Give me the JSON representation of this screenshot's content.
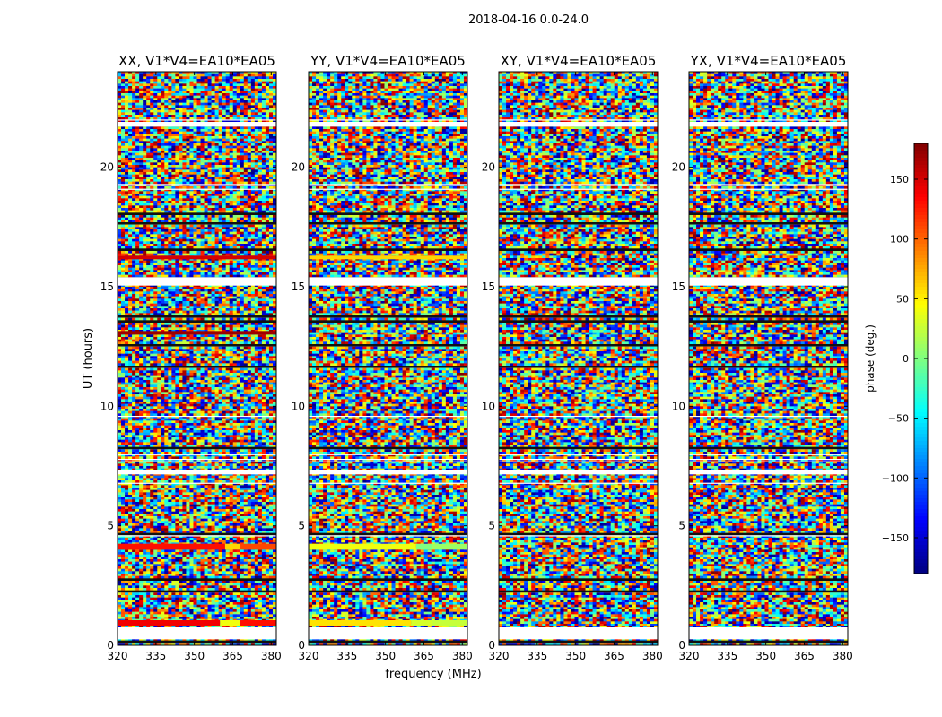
{
  "figure": {
    "suptitle": "2018-04-16 0.0-24.0",
    "ylabel": "UT (hours)",
    "xlabel": "frequency (MHz)"
  },
  "chart_data": [
    {
      "type": "heatmap",
      "title": "XX, V1*V4=EA10*EA05",
      "xlim": [
        320,
        382
      ],
      "ylim": [
        0,
        24
      ],
      "xticks": [
        320,
        335,
        350,
        365,
        380
      ],
      "yticks": [
        0,
        5,
        10,
        15,
        20
      ],
      "flagged_ut_bands": [
        [
          0.25,
          0.75
        ],
        [
          7.15,
          7.35
        ],
        [
          15.05,
          15.4
        ],
        [
          21.7,
          21.9
        ]
      ],
      "coherent_bands": [
        {
          "y0": 0.8,
          "y1": 1.05,
          "segments": [
            [
              320,
              360,
              140
            ],
            [
              360,
              368,
              40
            ],
            [
              368,
              382,
              130
            ]
          ]
        },
        {
          "y0": 4.0,
          "y1": 4.25,
          "segments": [
            [
              320,
              362,
              130
            ],
            [
              362,
              368,
              60
            ],
            [
              368,
              382,
              110
            ]
          ]
        },
        {
          "y0": 16.15,
          "y1": 16.3,
          "segments": [
            [
              320,
              382,
              150
            ]
          ]
        },
        {
          "y0": 13.0,
          "y1": 13.15,
          "segments": [
            [
              320,
              382,
              170
            ]
          ]
        }
      ]
    },
    {
      "type": "heatmap",
      "title": "YY, V1*V4=EA10*EA05",
      "xlim": [
        320,
        382
      ],
      "ylim": [
        0,
        24
      ],
      "xticks": [
        320,
        335,
        350,
        365,
        380
      ],
      "yticks": [
        0,
        5,
        10,
        15,
        20
      ],
      "flagged_ut_bands": [
        [
          0.25,
          0.75
        ],
        [
          7.15,
          7.35
        ],
        [
          15.05,
          15.4
        ],
        [
          21.7,
          21.9
        ]
      ],
      "coherent_bands": [
        {
          "y0": 0.8,
          "y1": 1.05,
          "segments": [
            [
              320,
              360,
              55
            ],
            [
              360,
              368,
              30
            ],
            [
              368,
              382,
              25
            ]
          ]
        },
        {
          "y0": 4.0,
          "y1": 4.25,
          "segments": [
            [
              320,
              362,
              40
            ],
            [
              362,
              368,
              0
            ],
            [
              368,
              382,
              10
            ]
          ]
        },
        {
          "y0": 16.15,
          "y1": 16.3,
          "segments": [
            [
              320,
              382,
              60
            ]
          ]
        }
      ]
    },
    {
      "type": "heatmap",
      "title": "XY, V1*V4=EA10*EA05",
      "xlim": [
        320,
        382
      ],
      "ylim": [
        0,
        24
      ],
      "xticks": [
        320,
        335,
        350,
        365,
        380
      ],
      "yticks": [
        0,
        5,
        10,
        15,
        20
      ],
      "flagged_ut_bands": [
        [
          0.25,
          0.75
        ],
        [
          7.15,
          7.35
        ],
        [
          15.05,
          15.4
        ],
        [
          21.7,
          21.9
        ]
      ],
      "coherent_bands": []
    },
    {
      "type": "heatmap",
      "title": "YX, V1*V4=EA10*EA05",
      "xlim": [
        320,
        382
      ],
      "ylim": [
        0,
        24
      ],
      "xticks": [
        320,
        335,
        350,
        365,
        380
      ],
      "yticks": [
        0,
        5,
        10,
        15,
        20
      ],
      "flagged_ut_bands": [
        [
          0.25,
          0.75
        ],
        [
          7.15,
          7.35
        ],
        [
          15.05,
          15.4
        ],
        [
          21.7,
          21.9
        ]
      ],
      "coherent_bands": []
    }
  ],
  "colorbar": {
    "label": "phase (deg.)",
    "range": [
      -180,
      180
    ],
    "ticks": [
      150,
      100,
      50,
      0,
      -50,
      -100,
      -150
    ],
    "tick_labels": [
      "150",
      "100",
      "50",
      "0",
      "−50",
      "−100",
      "−150"
    ]
  }
}
